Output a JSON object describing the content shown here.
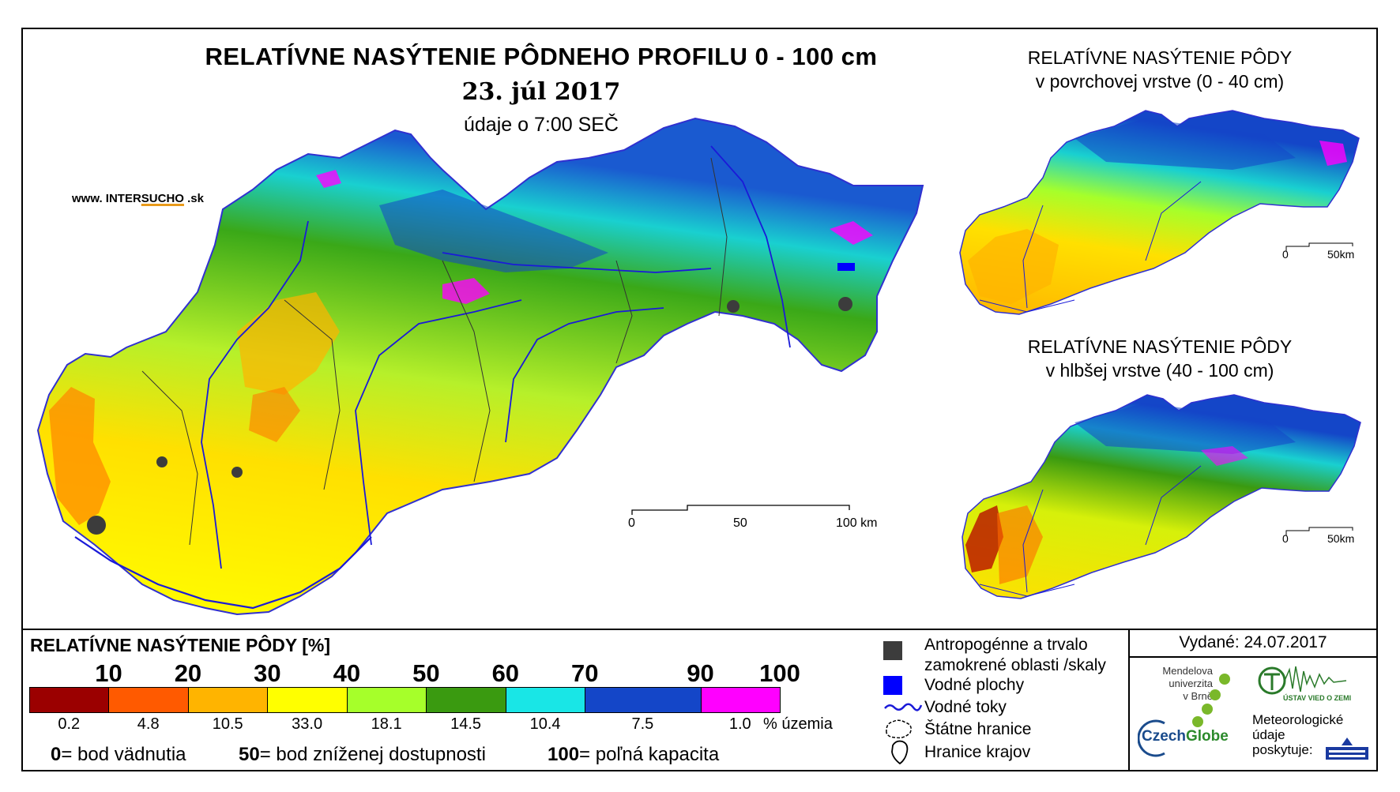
{
  "title": "RELATÍVNE NASÝTENIE PÔDNEHO PROFILU 0 - 100 cm",
  "date": "23. júl 2017",
  "time_note": "údaje o 7:00 SEČ",
  "website": {
    "prefix": "www. INTER",
    "mid": "SUCHO",
    "suffix": " .sk"
  },
  "main_scale": {
    "labels": [
      "0",
      "50",
      "100 km"
    ]
  },
  "surface_map": {
    "title_line1": "RELATÍVNE NASÝTENIE PÔDY",
    "title_line2": "v povrchovej vrstve (0 - 40 cm)",
    "scale_labels": [
      "0",
      "50km"
    ]
  },
  "deep_map": {
    "title_line1": "RELATÍVNE NASÝTENIE PÔDY",
    "title_line2": "v hlbšej vrstve (40 - 100 cm)",
    "scale_labels": [
      "0",
      "50km"
    ]
  },
  "legend": {
    "title": "RELATÍVNE NASÝTENIE PÔDY [%]",
    "thresholds": [
      "10",
      "20",
      "30",
      "40",
      "50",
      "60",
      "70",
      "90",
      "100"
    ],
    "classes": [
      {
        "color": "#9b0000",
        "pct": "0.2"
      },
      {
        "color": "#ff5a00",
        "pct": "4.8"
      },
      {
        "color": "#ffb400",
        "pct": "10.5"
      },
      {
        "color": "#ffff00",
        "pct": "33.0"
      },
      {
        "color": "#a6ff2a",
        "pct": "18.1"
      },
      {
        "color": "#3a9a10",
        "pct": "14.5"
      },
      {
        "color": "#19e6e6",
        "pct": "10.4"
      },
      {
        "color": "#1446c8",
        "pct": "7.5"
      },
      {
        "color": "#ff00ff",
        "pct": "1.0"
      }
    ],
    "unit": "% územia",
    "notes": [
      {
        "num": "0",
        "text": "= bod vädnutia"
      },
      {
        "num": "50",
        "text": "= bod zníženej dostupnosti"
      },
      {
        "num": "100",
        "text": "= poľná kapacita"
      }
    ]
  },
  "symbols": {
    "anthropogenic_line1": "Antropogénne a trvalo",
    "anthropogenic_line2": "zamokrené oblasti /skaly",
    "water_bodies": "Vodné plochy",
    "rivers": "Vodné toky",
    "state_border": "Štátne hranice",
    "region_border": "Hranice krajov"
  },
  "issued": "Vydané: 24.07.2017",
  "logos": {
    "mendel_line1": "Mendelova",
    "mendel_line2": "univerzita",
    "mendel_line3": "v Brně",
    "czechglobe_a": "Czech",
    "czechglobe_b": "Globe",
    "meteo_line1": "Meteorologické",
    "meteo_line2": "údaje",
    "meteo_line3": "poskytuje:",
    "ustav": "ÚSTAV VIED O ZEMI"
  },
  "colors": {
    "river": "#1a1ad8",
    "anthropogenic": "#3c3c3c",
    "water": "#0000ff"
  }
}
